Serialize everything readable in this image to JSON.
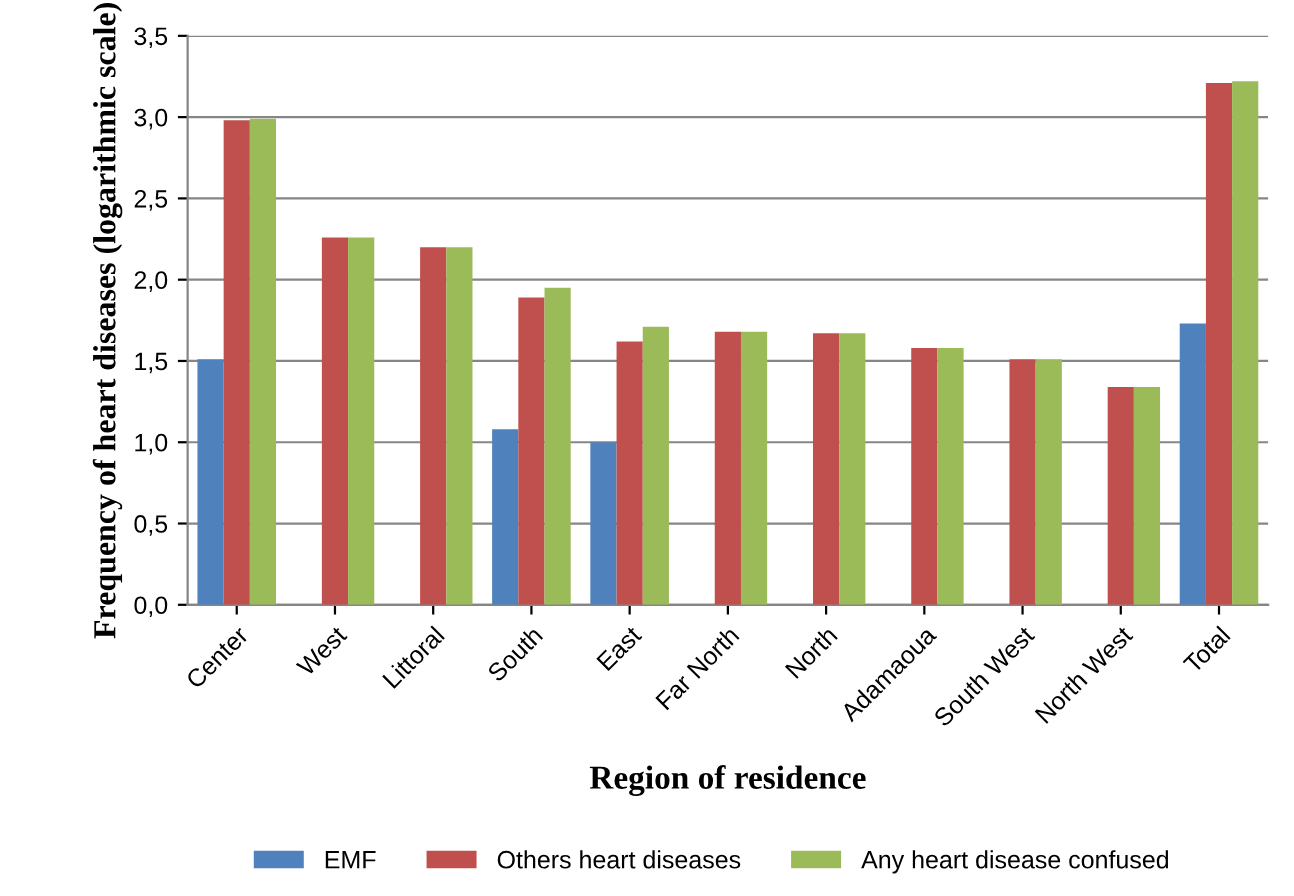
{
  "chart_data": {
    "type": "bar",
    "xlabel": "Region of residence",
    "ylabel": "Frequency of heart diseases (logarithmic scale)",
    "categories": [
      "Center",
      "West",
      "Littoral",
      "South",
      "East",
      "Far North",
      "North",
      "Adamaoua",
      "South West",
      "North West",
      "Total"
    ],
    "series": [
      {
        "name": "EMF",
        "color": "#4f81bd",
        "values": [
          1.51,
          null,
          null,
          1.08,
          1.0,
          null,
          null,
          null,
          null,
          null,
          1.73
        ]
      },
      {
        "name": "Others heart diseases",
        "color": "#c0504d",
        "values": [
          2.98,
          2.26,
          2.2,
          1.89,
          1.62,
          1.68,
          1.67,
          1.58,
          1.51,
          1.34,
          3.21
        ]
      },
      {
        "name": "Any heart disease confused",
        "color": "#9bbb59",
        "values": [
          2.99,
          2.26,
          2.2,
          1.95,
          1.71,
          1.68,
          1.67,
          1.58,
          1.51,
          1.34,
          3.22
        ]
      }
    ],
    "ylim": [
      0,
      3.5
    ],
    "yticks": [
      {
        "value": 0,
        "label": "0,0"
      },
      {
        "value": 0.5,
        "label": "0,5"
      },
      {
        "value": 1,
        "label": "1,0"
      },
      {
        "value": 1.5,
        "label": "1,5"
      },
      {
        "value": 2,
        "label": "2,0"
      },
      {
        "value": 2.5,
        "label": "2,5"
      },
      {
        "value": 3,
        "label": "3,0"
      },
      {
        "value": 3.5,
        "label": "3,5"
      }
    ],
    "grid": "y",
    "legend": "bottom"
  }
}
